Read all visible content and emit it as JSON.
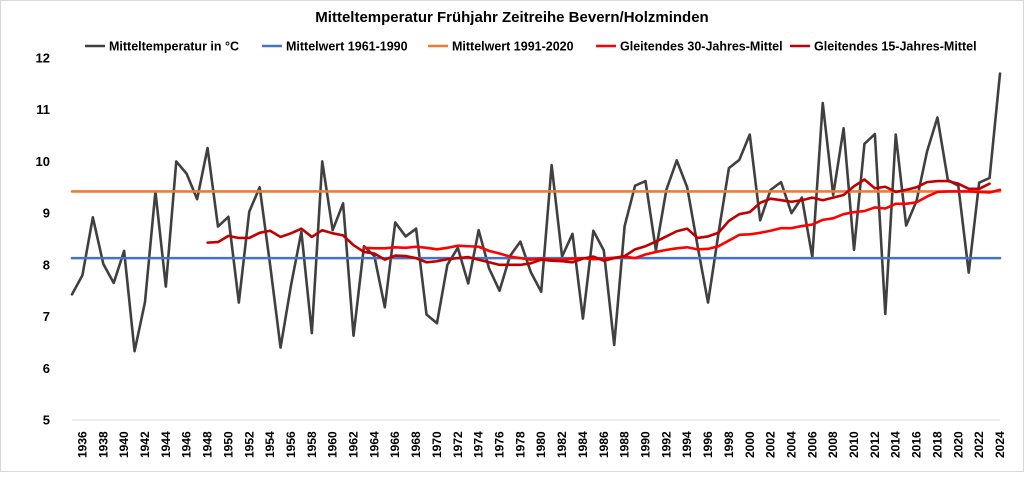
{
  "chart_data": {
    "type": "line",
    "title": "Mitteltemperatur Frühjahr Zeitreihe Bevern/Holzminden",
    "xlabel": "",
    "ylabel": "",
    "ylim": [
      5,
      12
    ],
    "yticks": [
      "5",
      "6",
      "7",
      "8",
      "9",
      "10",
      "11",
      "12"
    ],
    "xlim": [
      1935,
      2024
    ],
    "xticks": [
      "1936",
      "1938",
      "1940",
      "1942",
      "1944",
      "1946",
      "1948",
      "1950",
      "1952",
      "1954",
      "1956",
      "1958",
      "1960",
      "1962",
      "1964",
      "1966",
      "1968",
      "1970",
      "1972",
      "1974",
      "1976",
      "1978",
      "1980",
      "1982",
      "1984",
      "1986",
      "1988",
      "1990",
      "1992",
      "1994",
      "1996",
      "1998",
      "2000",
      "2002",
      "2004",
      "2006",
      "2008",
      "2010",
      "2012",
      "2014",
      "2016",
      "2018",
      "2020",
      "2022",
      "2024"
    ],
    "legend": [
      "Mitteltemperatur in °C",
      "Mittelwert 1961-1990",
      "Mittelwert 1991-2020",
      "Gleitendes 30-Jahres-Mittel",
      "Gleitendes 15-Jahres-Mittel"
    ],
    "colors": {
      "annual": "#404040",
      "mean6190": "#4472c4",
      "mean9120": "#ed7d31",
      "ma30": "#ff0000",
      "ma15": "#c00000"
    },
    "series": [
      {
        "name": "Mitteltemperatur in °C",
        "start_year": 1935,
        "values": [
          7.43,
          7.8,
          8.92,
          8.02,
          7.65,
          8.27,
          6.33,
          7.28,
          9.42,
          7.58,
          10.0,
          9.76,
          9.27,
          10.26,
          8.74,
          8.93,
          7.27,
          9.03,
          9.5,
          8.0,
          6.4,
          7.6,
          8.64,
          6.68,
          10.0,
          8.67,
          9.19,
          6.63,
          8.36,
          8.17,
          7.18,
          8.82,
          8.55,
          8.7,
          7.04,
          6.87,
          8.0,
          8.33,
          7.64,
          8.67,
          7.93,
          7.5,
          8.17,
          8.45,
          7.86,
          7.48,
          9.93,
          8.16,
          8.6,
          6.96,
          8.66,
          8.28,
          6.45,
          8.75,
          9.53,
          9.62,
          8.28,
          9.45,
          10.02,
          9.5,
          8.36,
          7.27,
          8.61,
          9.87,
          10.03,
          10.52,
          8.86,
          9.45,
          9.6,
          9.0,
          9.3,
          8.15,
          11.13,
          9.35,
          10.64,
          8.29,
          10.34,
          10.53,
          7.05,
          10.52,
          8.76,
          9.24,
          10.19,
          10.85,
          9.64,
          9.53,
          7.85,
          9.59,
          9.68,
          11.7
        ]
      },
      {
        "name": "Mittelwert 1961-1990",
        "constant": 8.13
      },
      {
        "name": "Mittelwert 1991-2020",
        "constant": 9.42
      },
      {
        "name": "Gleitendes 30-Jahres-Mittel",
        "start_year": 1963,
        "values": [
          8.33,
          8.32,
          8.32,
          8.34,
          8.33,
          8.35,
          8.33,
          8.3,
          8.33,
          8.37,
          8.36,
          8.35,
          8.27,
          8.22,
          8.16,
          8.13,
          8.1,
          8.12,
          8.1,
          8.1,
          8.12,
          8.13,
          8.11,
          8.12,
          8.14,
          8.16,
          8.13,
          8.2,
          8.25,
          8.29,
          8.32,
          8.34,
          8.3,
          8.31,
          8.36,
          8.47,
          8.58,
          8.59,
          8.62,
          8.66,
          8.71,
          8.71,
          8.75,
          8.78,
          8.87,
          8.9,
          8.98,
          9.02,
          9.04,
          9.11,
          9.09,
          9.18,
          9.18,
          9.21,
          9.32,
          9.41,
          9.42,
          9.42,
          9.42,
          9.41,
          9.4,
          9.45
        ]
      },
      {
        "name": "Gleitendes 15-Jahres-Mittel",
        "start_year": 1948,
        "values": [
          8.43,
          8.44,
          8.56,
          8.52,
          8.52,
          8.62,
          8.66,
          8.54,
          8.61,
          8.7,
          8.54,
          8.67,
          8.61,
          8.57,
          8.38,
          8.25,
          8.22,
          8.1,
          8.18,
          8.17,
          8.13,
          8.05,
          8.07,
          8.11,
          8.13,
          8.15,
          8.1,
          8.05,
          8.0,
          8.0,
          8.0,
          8.03,
          8.1,
          8.08,
          8.07,
          8.05,
          8.12,
          8.16,
          8.08,
          8.13,
          8.17,
          8.3,
          8.36,
          8.45,
          8.55,
          8.65,
          8.7,
          8.52,
          8.55,
          8.62,
          8.85,
          8.98,
          9.02,
          9.2,
          9.28,
          9.25,
          9.22,
          9.25,
          9.3,
          9.25,
          9.3,
          9.35,
          9.52,
          9.65,
          9.48,
          9.51,
          9.41,
          9.45,
          9.5,
          9.6,
          9.62,
          9.62,
          9.57,
          9.47,
          9.47,
          9.57
        ]
      }
    ]
  }
}
